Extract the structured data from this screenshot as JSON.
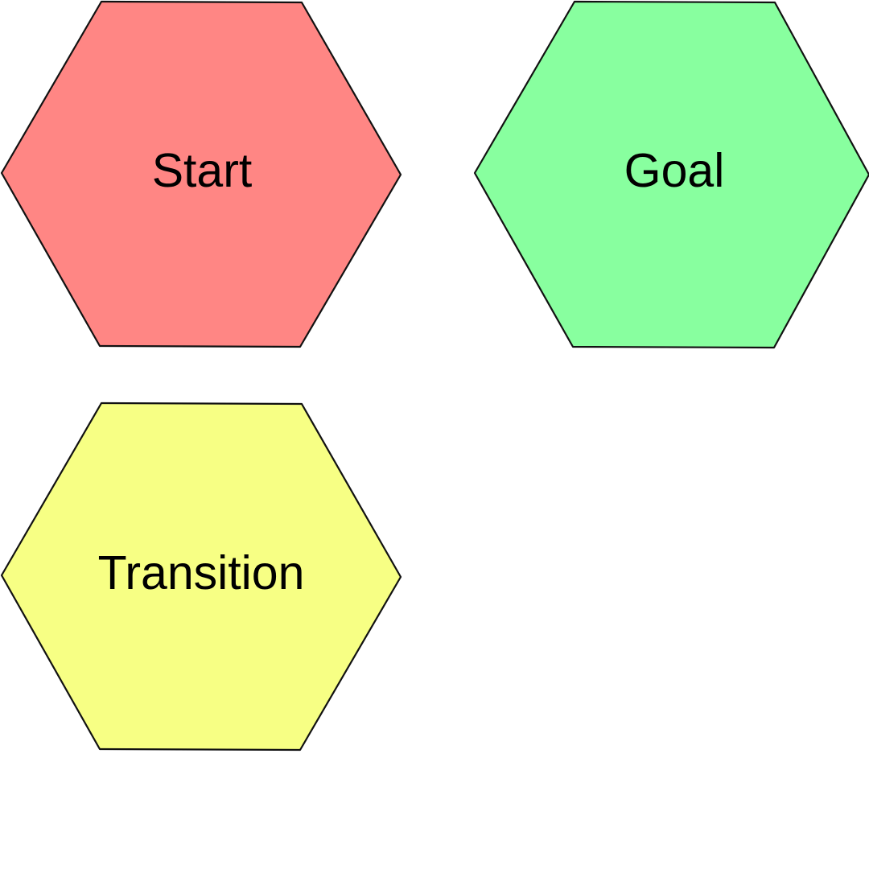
{
  "diagram": {
    "nodes": [
      {
        "id": "start",
        "label": "Start",
        "fill": "#ff8684"
      },
      {
        "id": "goal",
        "label": "Goal",
        "fill": "#88ff9f"
      },
      {
        "id": "transition",
        "label": "Transition",
        "fill": "#f7ff84"
      }
    ]
  }
}
